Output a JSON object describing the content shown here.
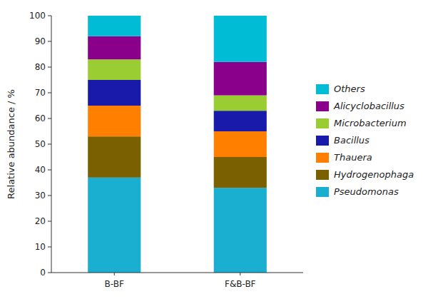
{
  "chart_data": {
    "type": "bar",
    "stacked": true,
    "y_label": "Relative abundance / %",
    "categories": [
      "B-BF",
      "F&B-BF"
    ],
    "series": [
      {
        "name": "Pseudomonas",
        "color": "#1aafd0",
        "values": [
          37.0,
          33.0
        ]
      },
      {
        "name": "Hydrogenophaga",
        "color": "#7B6000",
        "values": [
          16.0,
          12.0
        ]
      },
      {
        "name": "Thauera",
        "color": "#FF7F00",
        "values": [
          12.0,
          10.0
        ]
      },
      {
        "name": "Bacillus",
        "color": "#1a1aaa",
        "values": [
          10.0,
          8.0
        ]
      },
      {
        "name": "Microbacterium",
        "color": "#9ACD32",
        "values": [
          8.0,
          6.0
        ]
      },
      {
        "name": "Alicyclobacillus",
        "color": "#8B008B",
        "values": [
          9.0,
          13.0
        ]
      },
      {
        "name": "Others",
        "color": "#00BCD4",
        "values": [
          8.0,
          18.0
        ]
      }
    ],
    "ylim": [
      0,
      100
    ],
    "yticks": [
      0,
      10,
      20,
      30,
      40,
      50,
      60,
      70,
      80,
      90,
      100
    ],
    "grid": false,
    "legend": "right"
  }
}
